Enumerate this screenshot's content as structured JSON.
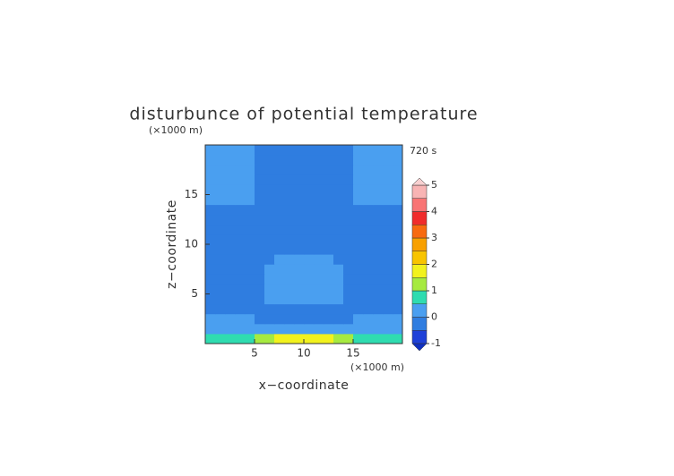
{
  "chart_data": {
    "type": "contour",
    "title": "disturbunce of potential temperature",
    "subtitle": "720 s",
    "x_unit": "(×1000 m)",
    "y_unit": "(×1000 m)",
    "xlabel": "x−coordinate",
    "ylabel": "z−coordinate",
    "xlim": [
      0,
      20
    ],
    "ylim": [
      0,
      20
    ],
    "xticks": [
      5,
      10,
      15
    ],
    "yticks": [
      5,
      10,
      15
    ],
    "levels": [
      -1,
      -0.5,
      0,
      0.5,
      1,
      1.5,
      2,
      2.5,
      3,
      3.5,
      4,
      4.5,
      5
    ],
    "colors": [
      "#1e40d8",
      "#2f7de0",
      "#4a9ff0",
      "#2fdcb0",
      "#a6ea40",
      "#f2f21e",
      "#f8c400",
      "#f8a000",
      "#f86a10",
      "#f02c2c",
      "#f87474",
      "#f8b4b4"
    ],
    "under_color": "#1030c0",
    "over_color": "#f8d0d0",
    "colorbar_ticks": [
      -1,
      0,
      1,
      2,
      3,
      4,
      5
    ],
    "z": [
      [
        0.75,
        0.75,
        0.75,
        0.75,
        0.75,
        1.25,
        1.25,
        1.75,
        1.75,
        1.75,
        1.75,
        1.75,
        1.75,
        1.25,
        1.25,
        0.75,
        0.75,
        0.75,
        0.75,
        0.75
      ],
      [
        0.25,
        0.25,
        0.25,
        0.25,
        0.25,
        0.25,
        0.25,
        0.25,
        0.25,
        0.25,
        0.25,
        0.25,
        0.25,
        0.25,
        0.25,
        0.25,
        0.25,
        0.25,
        0.25,
        0.25
      ],
      [
        0.25,
        0.25,
        0.25,
        0.25,
        0.25,
        -0.25,
        -0.25,
        -0.25,
        -0.25,
        -0.25,
        -0.25,
        -0.25,
        -0.25,
        -0.25,
        -0.25,
        0.25,
        0.25,
        0.25,
        0.25,
        0.25
      ],
      [
        -0.25,
        -0.25,
        -0.25,
        -0.25,
        -0.25,
        -0.25,
        -0.25,
        -0.25,
        -0.25,
        -0.25,
        -0.25,
        -0.25,
        -0.25,
        -0.25,
        -0.25,
        -0.25,
        -0.25,
        -0.25,
        -0.25,
        -0.25
      ],
      [
        -0.25,
        -0.25,
        -0.25,
        -0.25,
        -0.25,
        -0.25,
        0.25,
        0.25,
        0.25,
        0.25,
        0.25,
        0.25,
        0.25,
        0.25,
        -0.25,
        -0.25,
        -0.25,
        -0.25,
        -0.25,
        -0.25
      ],
      [
        -0.25,
        -0.25,
        -0.25,
        -0.25,
        -0.25,
        -0.25,
        0.25,
        0.25,
        0.25,
        0.25,
        0.25,
        0.25,
        0.25,
        0.25,
        -0.25,
        -0.25,
        -0.25,
        -0.25,
        -0.25,
        -0.25
      ],
      [
        -0.25,
        -0.25,
        -0.25,
        -0.25,
        -0.25,
        -0.25,
        0.25,
        0.25,
        0.25,
        0.25,
        0.25,
        0.25,
        0.25,
        0.25,
        -0.25,
        -0.25,
        -0.25,
        -0.25,
        -0.25,
        -0.25
      ],
      [
        -0.25,
        -0.25,
        -0.25,
        -0.25,
        -0.25,
        -0.25,
        0.25,
        0.25,
        0.25,
        0.25,
        0.25,
        0.25,
        0.25,
        0.25,
        -0.25,
        -0.25,
        -0.25,
        -0.25,
        -0.25,
        -0.25
      ],
      [
        -0.25,
        -0.25,
        -0.25,
        -0.25,
        -0.25,
        -0.25,
        -0.25,
        0.25,
        0.25,
        0.25,
        0.25,
        0.25,
        0.25,
        -0.25,
        -0.25,
        -0.25,
        -0.25,
        -0.25,
        -0.25,
        -0.25
      ],
      [
        -0.25,
        -0.25,
        -0.25,
        -0.25,
        -0.25,
        -0.25,
        -0.25,
        -0.25,
        -0.25,
        -0.25,
        -0.25,
        -0.25,
        -0.25,
        -0.25,
        -0.25,
        -0.25,
        -0.25,
        -0.25,
        -0.25,
        -0.25
      ],
      [
        -0.25,
        -0.25,
        -0.25,
        -0.25,
        -0.25,
        -0.25,
        -0.25,
        -0.25,
        -0.25,
        -0.25,
        -0.25,
        -0.25,
        -0.25,
        -0.25,
        -0.25,
        -0.25,
        -0.25,
        -0.25,
        -0.25,
        -0.25
      ],
      [
        -0.25,
        -0.25,
        -0.25,
        -0.25,
        -0.25,
        -0.25,
        -0.25,
        -0.25,
        -0.25,
        -0.25,
        -0.25,
        -0.25,
        -0.25,
        -0.25,
        -0.25,
        -0.25,
        -0.25,
        -0.25,
        -0.25,
        -0.25
      ],
      [
        -0.25,
        -0.25,
        -0.25,
        -0.25,
        -0.25,
        -0.25,
        -0.25,
        -0.25,
        -0.25,
        -0.25,
        -0.25,
        -0.25,
        -0.25,
        -0.25,
        -0.25,
        -0.25,
        -0.25,
        -0.25,
        -0.25,
        -0.25
      ],
      [
        -0.25,
        -0.25,
        -0.25,
        -0.25,
        -0.25,
        -0.25,
        -0.25,
        -0.25,
        -0.25,
        -0.25,
        -0.25,
        -0.25,
        -0.25,
        -0.25,
        -0.25,
        -0.25,
        -0.25,
        -0.25,
        -0.25,
        -0.25
      ],
      [
        0.25,
        0.25,
        0.25,
        0.25,
        0.25,
        -0.25,
        -0.25,
        -0.25,
        -0.25,
        -0.25,
        -0.25,
        -0.25,
        -0.25,
        -0.25,
        -0.25,
        0.25,
        0.25,
        0.25,
        0.25,
        0.25
      ],
      [
        0.25,
        0.25,
        0.25,
        0.25,
        0.25,
        -0.25,
        -0.25,
        -0.25,
        -0.25,
        -0.25,
        -0.25,
        -0.25,
        -0.25,
        -0.25,
        -0.25,
        0.25,
        0.25,
        0.25,
        0.25,
        0.25
      ],
      [
        0.25,
        0.25,
        0.25,
        0.25,
        0.25,
        -0.25,
        -0.25,
        -0.25,
        -0.25,
        -0.25,
        -0.25,
        -0.25,
        -0.25,
        -0.25,
        -0.25,
        0.25,
        0.25,
        0.25,
        0.25,
        0.25
      ],
      [
        0.25,
        0.25,
        0.25,
        0.25,
        0.25,
        -0.25,
        -0.25,
        -0.25,
        -0.25,
        -0.25,
        -0.25,
        -0.25,
        -0.25,
        -0.25,
        -0.25,
        0.25,
        0.25,
        0.25,
        0.25,
        0.25
      ],
      [
        0.25,
        0.25,
        0.25,
        0.25,
        0.25,
        -0.25,
        -0.25,
        -0.25,
        -0.25,
        -0.25,
        -0.25,
        -0.25,
        -0.25,
        -0.25,
        -0.25,
        0.25,
        0.25,
        0.25,
        0.25,
        0.25
      ],
      [
        0.25,
        0.25,
        0.25,
        0.25,
        0.25,
        -0.25,
        -0.25,
        -0.25,
        -0.25,
        -0.25,
        -0.25,
        -0.25,
        -0.25,
        -0.25,
        -0.25,
        0.25,
        0.25,
        0.25,
        0.25,
        0.25
      ]
    ]
  }
}
